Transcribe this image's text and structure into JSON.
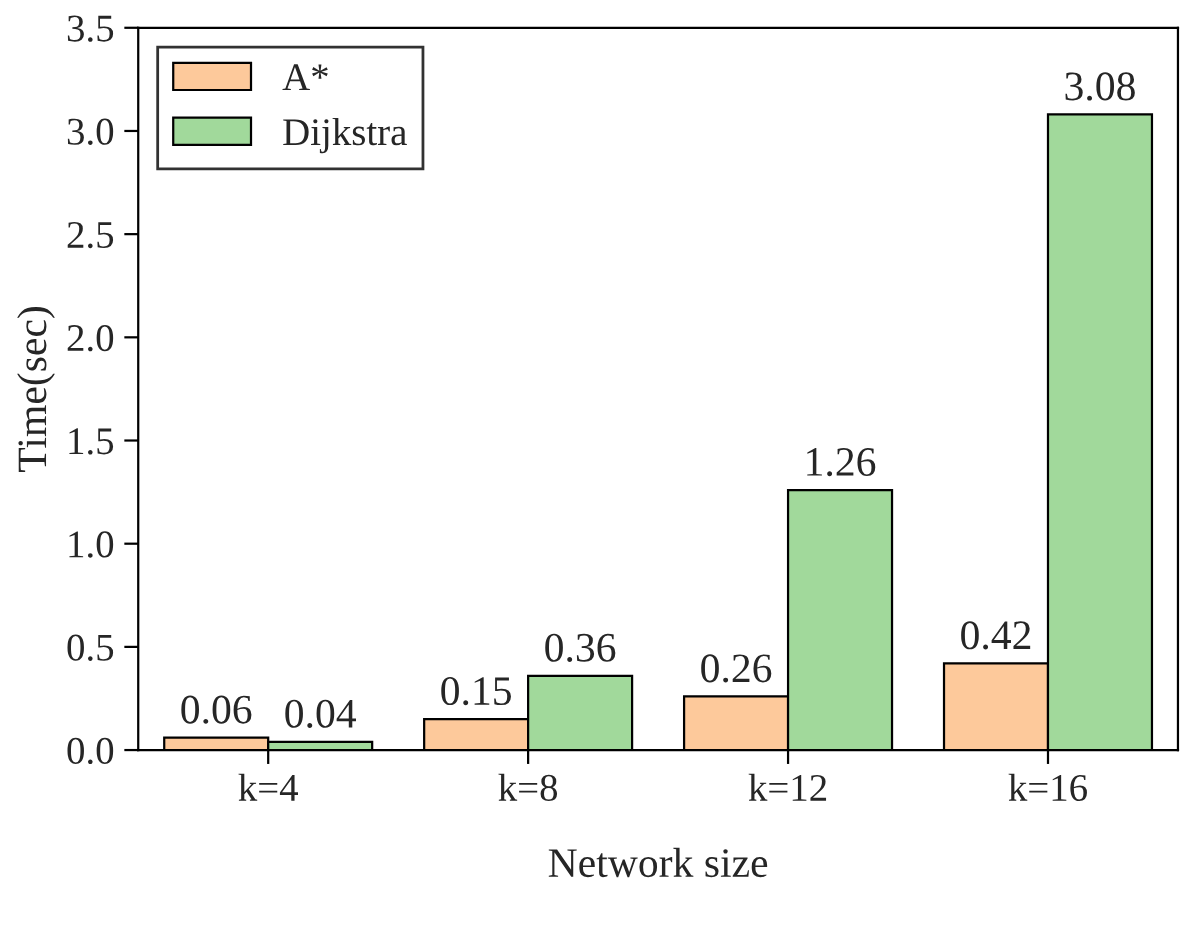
{
  "chart_data": {
    "type": "bar",
    "xlabel": "Network size",
    "ylabel": "Time(sec)",
    "categories": [
      "k=4",
      "k=8",
      "k=12",
      "k=16"
    ],
    "series": [
      {
        "name": "A*",
        "color": "#fdc99b",
        "values": [
          0.06,
          0.15,
          0.26,
          0.42
        ]
      },
      {
        "name": "Dijkstra",
        "color": "#a1d99b",
        "values": [
          0.04,
          0.36,
          1.26,
          3.08
        ]
      }
    ],
    "ylim": [
      0,
      3.5
    ],
    "yticks": [
      "0.0",
      "0.5",
      "1.0",
      "1.5",
      "2.0",
      "2.5",
      "3.0",
      "3.5"
    ],
    "data_labels": true,
    "legend": "top left",
    "grid": false
  }
}
